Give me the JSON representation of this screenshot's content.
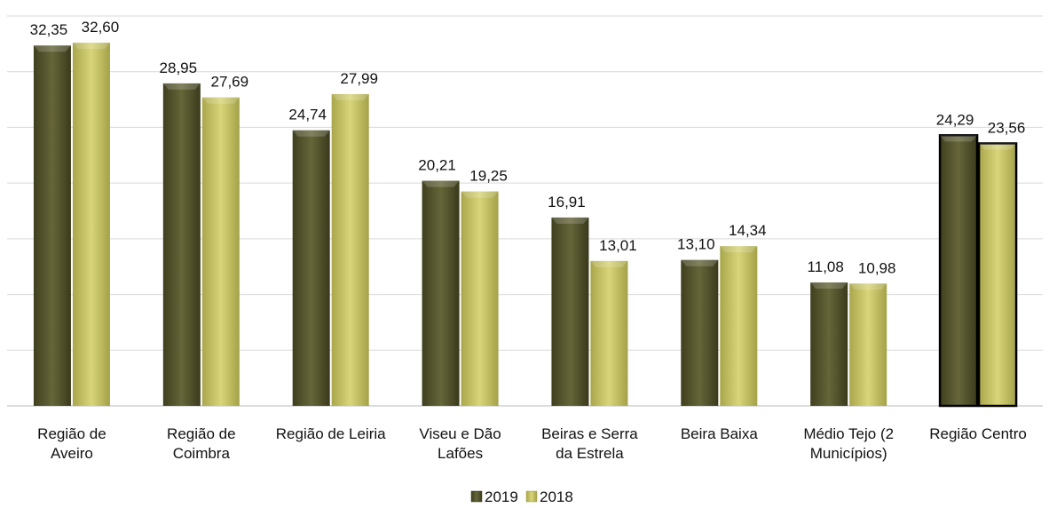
{
  "chart_data": {
    "type": "bar",
    "title": "",
    "xlabel": "",
    "ylabel": "",
    "ylim": [
      0,
      35
    ],
    "y_grid_step": 5,
    "grid": true,
    "y_axis_labels_shown": false,
    "legend_position": "bottom",
    "categories": [
      [
        "Região de",
        "Aveiro"
      ],
      [
        "Região de",
        "Coimbra"
      ],
      [
        "Região de Leiria"
      ],
      [
        "Viseu e Dão",
        "Lafões"
      ],
      [
        "Beiras e Serra",
        "da Estrela"
      ],
      [
        "Beira Baixa"
      ],
      [
        "Médio Tejo (2",
        "Municípios)"
      ],
      [
        "Região Centro"
      ]
    ],
    "highlighted_category_index": 7,
    "series": [
      {
        "name": "2019",
        "color": "#5a5a2e",
        "values": [
          32.35,
          28.95,
          24.74,
          20.21,
          16.91,
          13.1,
          11.08,
          24.29
        ],
        "labels": [
          "32,35",
          "28,95",
          "24,74",
          "20,21",
          "16,91",
          "13,10",
          "11,08",
          "24,29"
        ]
      },
      {
        "name": "2018",
        "color": "#c9c66a",
        "values": [
          32.6,
          27.69,
          27.99,
          19.25,
          13.01,
          14.34,
          10.98,
          23.56
        ],
        "labels": [
          "32,60",
          "27,69",
          "27,99",
          "19,25",
          "13,01",
          "14,34",
          "10,98",
          "23,56"
        ]
      }
    ]
  }
}
